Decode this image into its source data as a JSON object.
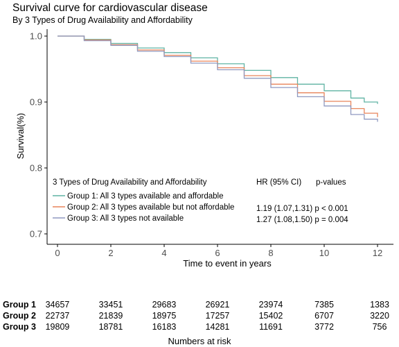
{
  "chart_data": {
    "type": "line",
    "title": "Survival curve for cardiovascular disease",
    "subtitle": "By 3 Types of Drug Availability and Affordability",
    "xlabel": "Time to event in years",
    "ylabel": "Survival(%)",
    "xlim": [
      0,
      12
    ],
    "ylim": [
      0.7,
      1.0
    ],
    "x_ticks": [
      0,
      2,
      4,
      6,
      8,
      10,
      12
    ],
    "x_tick_labels": [
      "0",
      "2",
      "4",
      "6",
      "8",
      "10",
      "12"
    ],
    "y_ticks": [
      0.7,
      0.8,
      0.9,
      1.0
    ],
    "y_tick_labels": [
      "0.7",
      "0.8",
      "0.9",
      "1.0"
    ],
    "grid": false,
    "legend": {
      "title": "3 Types of Drug Availability and Affordability",
      "placement": "bottom-left"
    },
    "series": [
      {
        "name": "Group 1: All 3 types available and affordable",
        "color": "#5fb3a3",
        "x": [
          0,
          1,
          2,
          3,
          4,
          5,
          6,
          7,
          8,
          9,
          10,
          11,
          11.5,
          12
        ],
        "y": [
          1.0,
          0.995,
          0.989,
          0.982,
          0.975,
          0.967,
          0.958,
          0.948,
          0.937,
          0.927,
          0.917,
          0.906,
          0.9,
          0.897
        ]
      },
      {
        "name": "Group 2: All 3 types available but not affordable",
        "color": "#e8845a",
        "x": [
          0,
          1,
          2,
          3,
          4,
          5,
          6,
          7,
          8,
          9,
          10,
          11,
          11.5,
          12
        ],
        "y": [
          1.0,
          0.994,
          0.987,
          0.979,
          0.971,
          0.962,
          0.952,
          0.94,
          0.927,
          0.914,
          0.901,
          0.89,
          0.883,
          0.877
        ]
      },
      {
        "name": "Group 3: All 3 types not available",
        "color": "#8f99c0",
        "x": [
          0,
          1,
          2,
          3,
          4,
          5,
          6,
          7,
          8,
          9,
          10,
          11,
          11.5,
          12
        ],
        "y": [
          1.0,
          0.993,
          0.986,
          0.977,
          0.969,
          0.959,
          0.949,
          0.936,
          0.922,
          0.908,
          0.894,
          0.881,
          0.874,
          0.87
        ]
      }
    ],
    "annotations": {
      "hr_header": "HR (95% CI)",
      "p_header": "p-values",
      "rows": [
        {
          "text": "1.19 (1.07,1.31) p < 0.001"
        },
        {
          "text": "1.27 (1.08,1.50) p = 0.004"
        }
      ]
    }
  },
  "risk_table": {
    "title": "Numbers at risk",
    "rows": [
      {
        "label": "Group 1",
        "values": [
          "34657",
          "33451",
          "29683",
          "26921",
          "23974",
          "7385",
          "1383"
        ]
      },
      {
        "label": "Group 2",
        "values": [
          "22737",
          "21839",
          "18975",
          "17257",
          "15402",
          "6707",
          "3220"
        ]
      },
      {
        "label": "Group 3",
        "values": [
          "19809",
          "18781",
          "16183",
          "14281",
          "11691",
          "3772",
          "756"
        ]
      }
    ]
  }
}
